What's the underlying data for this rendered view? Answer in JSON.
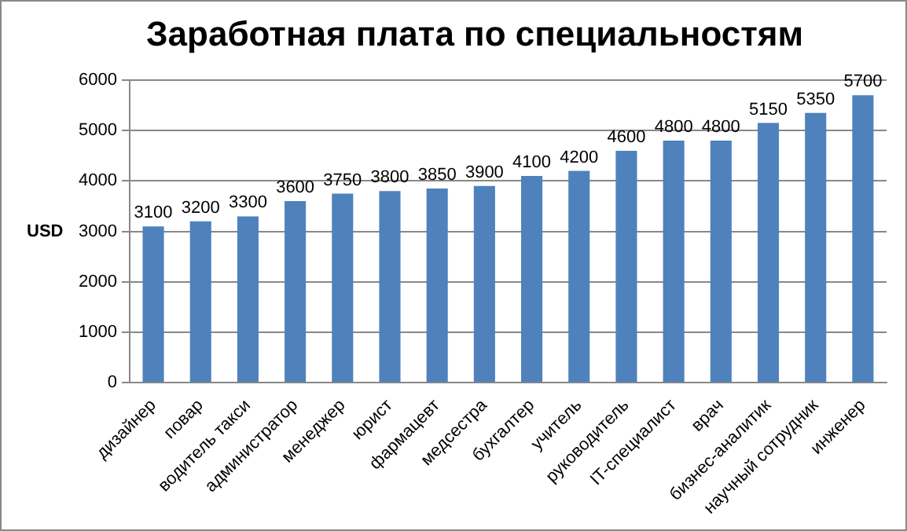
{
  "chart_data": {
    "type": "bar",
    "title": "Заработная плата по специальностям",
    "ylabel": "USD",
    "categories": [
      "дизайнер",
      "повар",
      "водитель такси",
      "администратор",
      "менеджер",
      "юрист",
      "фармацевт",
      "медсестра",
      "бухгалтер",
      "учитель",
      "руководитель",
      "IT-специалист",
      "врач",
      "бизнес-аналитик",
      "научный сотрудник",
      "инженер"
    ],
    "values": [
      3100,
      3200,
      3300,
      3600,
      3750,
      3800,
      3850,
      3900,
      4100,
      4200,
      4600,
      4800,
      4800,
      5150,
      5350,
      5700
    ],
    "color": "#4f81bd",
    "ylim": [
      0,
      6000
    ],
    "yticks": [
      0,
      1000,
      2000,
      3000,
      4000,
      5000,
      6000
    ],
    "grid": "y",
    "legend": false,
    "data_labels": true
  }
}
